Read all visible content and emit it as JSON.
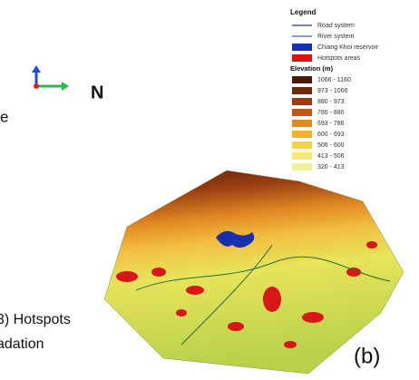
{
  "legend": {
    "title": "Legend",
    "items": [
      {
        "label": "Road system",
        "color": "#2b3a7a",
        "kind": "line"
      },
      {
        "label": "River system",
        "color": "#3a66b0",
        "kind": "line"
      },
      {
        "label": "Chiang Khoi reservoir",
        "color": "#1a2fb0",
        "kind": "box"
      },
      {
        "label": "Hotspots areas",
        "color": "#e01010",
        "kind": "box"
      }
    ],
    "elevation": {
      "title": "Elevation (m)",
      "classes": [
        {
          "label": "1066 - 1160",
          "color": "#4a1a08"
        },
        {
          "label": "973 - 1066",
          "color": "#6e2a0c"
        },
        {
          "label": "880 - 973",
          "color": "#9a3e10"
        },
        {
          "label": "786 - 880",
          "color": "#c15a14"
        },
        {
          "label": "693 - 786",
          "color": "#e08a22"
        },
        {
          "label": "600 - 693",
          "color": "#f2b030"
        },
        {
          "label": "506 - 600",
          "color": "#f7d04a"
        },
        {
          "label": "413 - 506",
          "color": "#f4e870"
        },
        {
          "label": "320 - 413",
          "color": "#f2f09a"
        }
      ]
    }
  },
  "north_label": "N",
  "side_text": "e",
  "caption_lines": [
    "3) Hotspots",
    "adation"
  ],
  "panel_label": "(b)"
}
